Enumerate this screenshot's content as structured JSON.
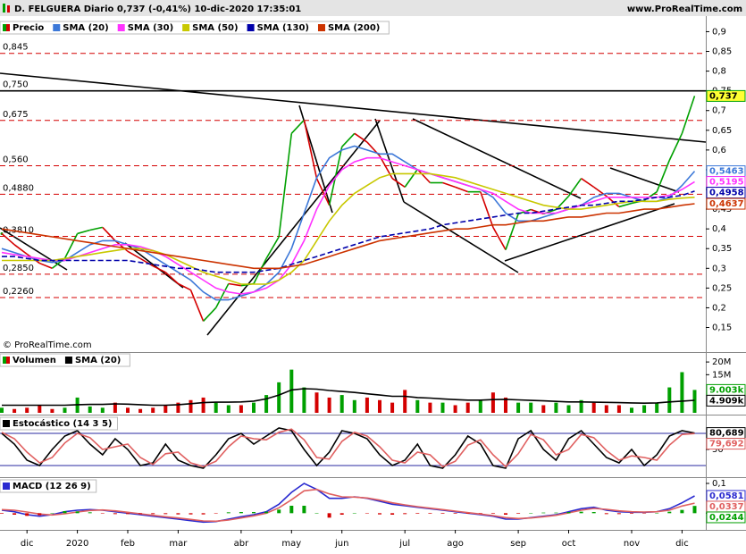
{
  "header": {
    "title": "D. FELGUERA Diario 0,737 (-0,41%) 10-dic-2020 17:35:01",
    "site": "www.ProRealTime.com"
  },
  "copyright": "© ProRealTime.com",
  "chart_data": [
    {
      "type": "line",
      "legend": true,
      "ylim": [
        0.09,
        0.935
      ],
      "yticks": [
        {
          "value": 0.9,
          "label": "0,9"
        },
        {
          "value": 0.85,
          "label": "0,85"
        },
        {
          "value": 0.8,
          "label": "0,8"
        },
        {
          "value": 0.75,
          "label": "0,75"
        },
        {
          "value": 0.7,
          "label": "0,7"
        },
        {
          "value": 0.65,
          "label": "0,65"
        },
        {
          "value": 0.6,
          "label": "0,6"
        },
        {
          "value": 0.55,
          "label": "0,55"
        },
        {
          "value": 0.5,
          "label": "0,5"
        },
        {
          "value": 0.45,
          "label": "0,45"
        },
        {
          "value": 0.4,
          "label": "0,4"
        },
        {
          "value": 0.35,
          "label": "0,35"
        },
        {
          "value": 0.3,
          "label": "0,3"
        },
        {
          "value": 0.25,
          "label": "0,25"
        },
        {
          "value": 0.2,
          "label": "0,2"
        },
        {
          "value": 0.15,
          "label": "0,15"
        }
      ],
      "level_color": "#d40000",
      "levels": [
        {
          "value": 0.845,
          "label": "0,845"
        },
        {
          "value": 0.75,
          "label": "0,750",
          "color": "#000000"
        },
        {
          "value": 0.675,
          "label": "0,675"
        },
        {
          "value": 0.56,
          "label": "0,560"
        },
        {
          "value": 0.488,
          "label": "0,4880"
        },
        {
          "value": 0.381,
          "label": "0,3810"
        },
        {
          "value": 0.285,
          "label": "0,2850"
        },
        {
          "value": 0.226,
          "label": "0,2260"
        }
      ],
      "series": [
        {
          "name": "Precio",
          "color": "#00a000",
          "down_color": "#d40000",
          "label_bg": "#ffff33",
          "last_label": "0,737",
          "values": [
            0.388,
            0.36,
            0.336,
            0.313,
            0.3,
            0.325,
            0.388,
            0.397,
            0.404,
            0.37,
            0.343,
            0.325,
            0.306,
            0.29,
            0.261,
            0.245,
            0.166,
            0.2,
            0.261,
            0.256,
            0.261,
            0.325,
            0.38,
            0.642,
            0.676,
            0.528,
            0.46,
            0.608,
            0.642,
            0.62,
            0.585,
            0.528,
            0.506,
            0.551,
            0.517,
            0.517,
            0.506,
            0.494,
            0.494,
            0.404,
            0.347,
            0.438,
            0.449,
            0.438,
            0.449,
            0.483,
            0.528,
            0.506,
            0.483,
            0.456,
            0.465,
            0.472,
            0.494,
            0.574,
            0.642,
            0.737
          ]
        },
        {
          "name": "SMA (20)",
          "color": "#3c78d8",
          "last_label": "0,5463",
          "values": [
            0.35,
            0.34,
            0.33,
            0.32,
            0.315,
            0.32,
            0.34,
            0.36,
            0.37,
            0.37,
            0.36,
            0.35,
            0.33,
            0.31,
            0.29,
            0.27,
            0.24,
            0.22,
            0.22,
            0.23,
            0.24,
            0.26,
            0.29,
            0.35,
            0.44,
            0.53,
            0.58,
            0.6,
            0.61,
            0.6,
            0.59,
            0.59,
            0.57,
            0.55,
            0.54,
            0.53,
            0.52,
            0.51,
            0.5,
            0.48,
            0.44,
            0.42,
            0.42,
            0.43,
            0.44,
            0.45,
            0.46,
            0.48,
            0.49,
            0.49,
            0.48,
            0.47,
            0.47,
            0.48,
            0.51,
            0.5463
          ]
        },
        {
          "name": "SMA (30)",
          "color": "#ff33ff",
          "last_label": "0,5195",
          "values": [
            0.34,
            0.335,
            0.33,
            0.325,
            0.32,
            0.32,
            0.33,
            0.34,
            0.35,
            0.36,
            0.36,
            0.355,
            0.345,
            0.33,
            0.31,
            0.29,
            0.27,
            0.25,
            0.24,
            0.235,
            0.24,
            0.25,
            0.27,
            0.31,
            0.37,
            0.45,
            0.51,
            0.55,
            0.57,
            0.58,
            0.58,
            0.57,
            0.56,
            0.55,
            0.54,
            0.53,
            0.52,
            0.51,
            0.5,
            0.49,
            0.47,
            0.45,
            0.44,
            0.44,
            0.44,
            0.45,
            0.46,
            0.47,
            0.48,
            0.48,
            0.48,
            0.48,
            0.48,
            0.485,
            0.5,
            0.5195
          ]
        },
        {
          "name": "SMA (50)",
          "color": "#c8c800",
          "values": [
            0.32,
            0.32,
            0.32,
            0.32,
            0.32,
            0.325,
            0.33,
            0.335,
            0.34,
            0.345,
            0.35,
            0.35,
            0.345,
            0.335,
            0.32,
            0.305,
            0.29,
            0.28,
            0.27,
            0.26,
            0.26,
            0.26,
            0.27,
            0.29,
            0.32,
            0.37,
            0.42,
            0.46,
            0.49,
            0.51,
            0.53,
            0.54,
            0.54,
            0.54,
            0.54,
            0.535,
            0.53,
            0.52,
            0.51,
            0.5,
            0.49,
            0.48,
            0.47,
            0.46,
            0.455,
            0.45,
            0.45,
            0.455,
            0.46,
            0.465,
            0.47,
            0.47,
            0.47,
            0.475,
            0.478,
            0.48
          ]
        },
        {
          "name": "SMA (130)",
          "color": "#0000aa",
          "dashed": true,
          "last_label": "0,4958",
          "values": [
            0.33,
            0.33,
            0.325,
            0.32,
            0.32,
            0.32,
            0.32,
            0.32,
            0.32,
            0.32,
            0.32,
            0.315,
            0.31,
            0.305,
            0.3,
            0.3,
            0.295,
            0.29,
            0.29,
            0.29,
            0.29,
            0.295,
            0.3,
            0.31,
            0.32,
            0.33,
            0.34,
            0.35,
            0.36,
            0.37,
            0.38,
            0.385,
            0.39,
            0.395,
            0.4,
            0.41,
            0.415,
            0.42,
            0.425,
            0.43,
            0.435,
            0.44,
            0.44,
            0.445,
            0.45,
            0.455,
            0.46,
            0.46,
            0.465,
            0.47,
            0.47,
            0.475,
            0.48,
            0.48,
            0.485,
            0.4958
          ]
        },
        {
          "name": "SMA (200)",
          "color": "#cc3300",
          "last_label": "0,4637",
          "values": [
            0.4,
            0.395,
            0.39,
            0.385,
            0.38,
            0.375,
            0.37,
            0.365,
            0.36,
            0.355,
            0.35,
            0.345,
            0.34,
            0.335,
            0.33,
            0.325,
            0.32,
            0.315,
            0.31,
            0.305,
            0.3,
            0.3,
            0.3,
            0.305,
            0.31,
            0.32,
            0.33,
            0.34,
            0.35,
            0.36,
            0.37,
            0.375,
            0.38,
            0.385,
            0.39,
            0.395,
            0.4,
            0.4,
            0.405,
            0.41,
            0.41,
            0.415,
            0.42,
            0.42,
            0.425,
            0.43,
            0.43,
            0.435,
            0.44,
            0.44,
            0.445,
            0.45,
            0.45,
            0.455,
            0.46,
            0.4637
          ]
        }
      ]
    },
    {
      "type": "bar",
      "legend": true,
      "ylim": [
        0,
        22500000
      ],
      "yticks": [
        {
          "value": 20000000,
          "label": "20M"
        },
        {
          "value": 15000000,
          "label": "15M"
        }
      ],
      "series": [
        {
          "name": "Volumen",
          "type": "bar",
          "color": "#00a000",
          "down_color": "#d40000",
          "last_label": "9.003k",
          "values": [
            2000000,
            1500000,
            2000000,
            3000000,
            1500000,
            2000000,
            6000000,
            2500000,
            2000000,
            4000000,
            2000000,
            1500000,
            2000000,
            3000000,
            4000000,
            5000000,
            6000000,
            4000000,
            3000000,
            3000000,
            4000000,
            7000000,
            12000000,
            17000000,
            10000000,
            8000000,
            6000000,
            7000000,
            5000000,
            6000000,
            5000000,
            4000000,
            9000000,
            5000000,
            4000000,
            4000000,
            3000000,
            4000000,
            5000000,
            8000000,
            6000000,
            4000000,
            4000000,
            3000000,
            4000000,
            3000000,
            5000000,
            4000000,
            3000000,
            3000000,
            2000000,
            3000000,
            4000000,
            10000000,
            16000000,
            9003000
          ]
        },
        {
          "name": "SMA (20)",
          "color": "#000000",
          "last_label": "4.909k",
          "values": [
            3000000,
            3000000,
            3000000,
            3000000,
            3000000,
            3000000,
            3200000,
            3300000,
            3300000,
            3500000,
            3400000,
            3200000,
            3000000,
            3000000,
            3200000,
            3600000,
            4000000,
            4200000,
            4200000,
            4300000,
            4600000,
            5500000,
            7000000,
            9000000,
            9500000,
            9300000,
            8800000,
            8400000,
            8000000,
            7500000,
            7000000,
            6500000,
            6500000,
            6000000,
            5800000,
            5500000,
            5200000,
            5000000,
            5000000,
            5200000,
            5300000,
            5100000,
            4900000,
            4700000,
            4500000,
            4300000,
            4300000,
            4200000,
            4100000,
            4000000,
            3900000,
            3800000,
            3900000,
            4300000,
            4600000,
            4909000
          ]
        }
      ]
    },
    {
      "type": "line",
      "title": "Estocástico (14 3 5)",
      "ylim": [
        0,
        110
      ],
      "yticks": [
        50
      ],
      "bands": [
        20,
        80
      ],
      "band_color": "#2a2aa0",
      "series": [
        {
          "color": "#000000",
          "last_label": "80,689",
          "values": [
            80,
            60,
            30,
            20,
            50,
            75,
            85,
            60,
            40,
            70,
            50,
            20,
            25,
            60,
            30,
            20,
            15,
            40,
            70,
            80,
            60,
            75,
            90,
            85,
            50,
            20,
            45,
            85,
            80,
            70,
            40,
            20,
            30,
            60,
            20,
            15,
            40,
            75,
            60,
            20,
            15,
            70,
            85,
            50,
            30,
            70,
            85,
            60,
            35,
            25,
            50,
            20,
            40,
            75,
            85,
            80.689
          ]
        },
        {
          "color": "#e06060",
          "last_label": "79,692",
          "values": [
            82,
            70,
            45,
            25,
            35,
            62,
            80,
            72,
            50,
            55,
            60,
            35,
            22,
            42,
            45,
            25,
            18,
            28,
            55,
            75,
            70,
            68,
            82,
            88,
            68,
            35,
            32,
            65,
            82,
            75,
            55,
            30,
            25,
            45,
            40,
            18,
            28,
            58,
            68,
            40,
            18,
            42,
            78,
            68,
            40,
            50,
            78,
            72,
            48,
            30,
            38,
            35,
            30,
            58,
            78,
            79.692
          ]
        }
      ]
    },
    {
      "type": "line",
      "title": "MACD (12 26 9)",
      "ylim": [
        -0.05,
        0.115
      ],
      "yticks": [
        {
          "value": 0.1,
          "label": "0,1"
        },
        0
      ],
      "categories": [
        null,
        null,
        "dic",
        null,
        null,
        null,
        "2020",
        null,
        null,
        null,
        "feb",
        null,
        null,
        null,
        "mar",
        null,
        null,
        null,
        null,
        "abr",
        null,
        null,
        null,
        "may",
        null,
        null,
        null,
        "jun",
        null,
        null,
        null,
        null,
        "jul",
        null,
        null,
        null,
        "ago",
        null,
        null,
        null,
        null,
        "sep",
        null,
        null,
        null,
        "oct",
        null,
        null,
        null,
        null,
        "nov",
        null,
        null,
        null,
        "dic",
        null
      ],
      "series": [
        {
          "color": "#2a2ad0",
          "last_label": "0,0581",
          "values": [
            0.01,
            0.005,
            -0.005,
            -0.01,
            -0.005,
            0.005,
            0.01,
            0.012,
            0.01,
            0.005,
            0,
            -0.005,
            -0.01,
            -0.015,
            -0.02,
            -0.025,
            -0.03,
            -0.028,
            -0.02,
            -0.012,
            -0.005,
            0.005,
            0.03,
            0.07,
            0.1,
            0.08,
            0.05,
            0.05,
            0.055,
            0.05,
            0.04,
            0.03,
            0.025,
            0.02,
            0.015,
            0.01,
            0.005,
            0,
            -0.005,
            -0.01,
            -0.02,
            -0.02,
            -0.015,
            -0.01,
            -0.005,
            0.005,
            0.015,
            0.02,
            0.01,
            0.005,
            0.003,
            0.003,
            0.005,
            0.015,
            0.035,
            0.0581
          ]
        },
        {
          "color": "#e06060",
          "last_label": "0,0337",
          "values": [
            0.012,
            0.01,
            0.004,
            -0.003,
            -0.006,
            -0.002,
            0.004,
            0.009,
            0.011,
            0.008,
            0.003,
            -0.002,
            -0.007,
            -0.012,
            -0.016,
            -0.021,
            -0.026,
            -0.027,
            -0.023,
            -0.016,
            -0.009,
            0,
            0.018,
            0.045,
            0.075,
            0.08,
            0.065,
            0.055,
            0.054,
            0.051,
            0.044,
            0.035,
            0.028,
            0.022,
            0.017,
            0.012,
            0.007,
            0.002,
            -0.003,
            -0.008,
            -0.015,
            -0.018,
            -0.016,
            -0.012,
            -0.007,
            0.001,
            0.01,
            0.016,
            0.013,
            0.008,
            0.005,
            0.004,
            0.005,
            0.01,
            0.024,
            0.0337
          ]
        },
        {
          "type": "bar",
          "color": "#00a000",
          "down_color": "#d40000",
          "last_label": "0,0244",
          "values": [
            -0.002,
            -0.005,
            -0.009,
            -0.007,
            0.001,
            0.007,
            0.006,
            0.003,
            -0.001,
            -0.003,
            -0.003,
            -0.003,
            -0.003,
            -0.003,
            -0.004,
            -0.004,
            -0.004,
            -0.001,
            0.003,
            0.004,
            0.004,
            0.005,
            0.012,
            0.025,
            0.025,
            0,
            -0.015,
            -0.005,
            0.001,
            -0.001,
            -0.004,
            -0.005,
            -0.003,
            -0.002,
            -0.002,
            -0.002,
            -0.002,
            -0.002,
            -0.002,
            -0.002,
            -0.005,
            -0.002,
            0.001,
            0.002,
            0.002,
            0.004,
            0.005,
            0.004,
            -0.003,
            -0.003,
            -0.002,
            -0.001,
            0,
            0.005,
            0.011,
            0.0244
          ]
        }
      ]
    }
  ]
}
